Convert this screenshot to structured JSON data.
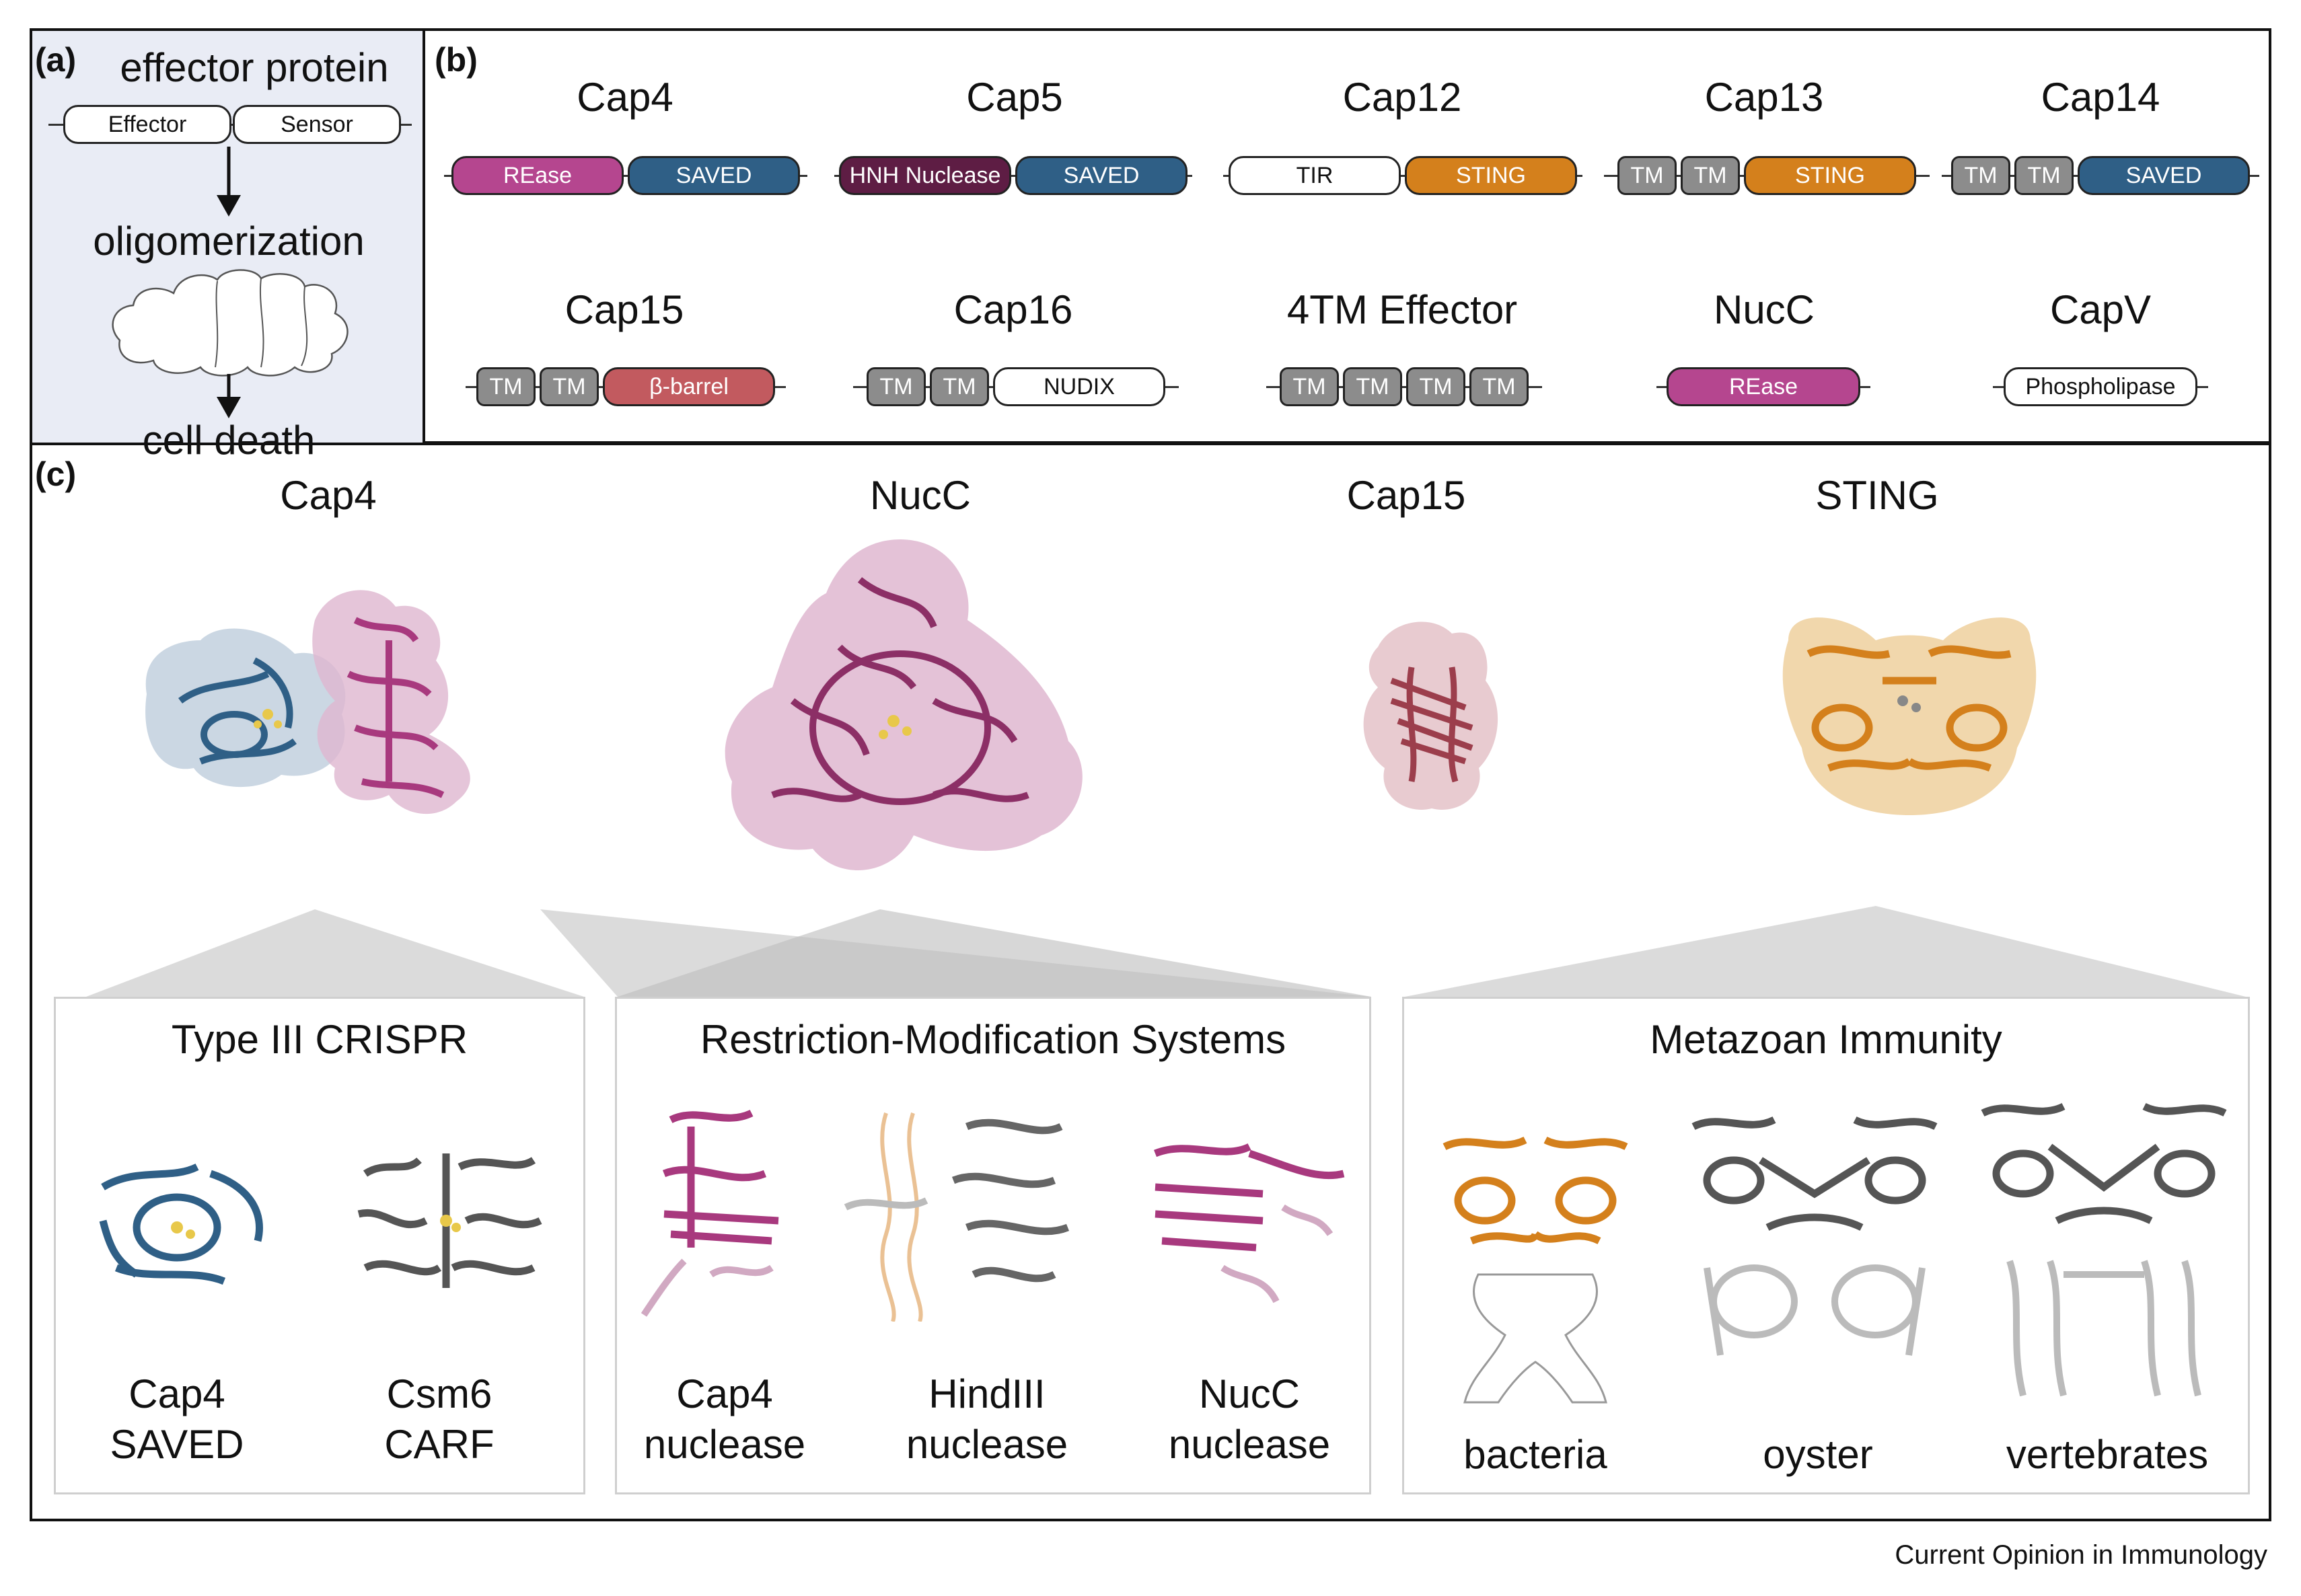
{
  "colors": {
    "rease": "#b5468f",
    "saved": "#2f5f86",
    "hnh": "#5e1d44",
    "sting": "#d4801c",
    "tm": "#8c8c8c",
    "barrel": "#c25a5f",
    "white": "#ffffff",
    "panel_a_bg": "#e9ecf5"
  },
  "panel_a": {
    "label": "(a)",
    "title": "effector protein",
    "domain_effector": "Effector",
    "domain_sensor": "Sensor",
    "step2": "oligomerization",
    "step3": "cell death"
  },
  "panel_b": {
    "label": "(b)",
    "proteins": [
      {
        "name": "Cap4",
        "domains": [
          {
            "label": "REase",
            "kind": "rease"
          },
          {
            "label": "SAVED",
            "kind": "saved"
          }
        ]
      },
      {
        "name": "Cap5",
        "domains": [
          {
            "label": "HNH Nuclease",
            "kind": "hnh"
          },
          {
            "label": "SAVED",
            "kind": "saved"
          }
        ]
      },
      {
        "name": "Cap12",
        "domains": [
          {
            "label": "TIR",
            "kind": "white"
          },
          {
            "label": "STING",
            "kind": "sting"
          }
        ]
      },
      {
        "name": "Cap13",
        "domains": [
          {
            "label": "TM",
            "kind": "tm"
          },
          {
            "label": "TM",
            "kind": "tm"
          },
          {
            "label": "STING",
            "kind": "sting"
          }
        ]
      },
      {
        "name": "Cap14",
        "domains": [
          {
            "label": "TM",
            "kind": "tm"
          },
          {
            "label": "TM",
            "kind": "tm"
          },
          {
            "label": "SAVED",
            "kind": "saved"
          }
        ]
      },
      {
        "name": "Cap15",
        "domains": [
          {
            "label": "TM",
            "kind": "tm"
          },
          {
            "label": "TM",
            "kind": "tm"
          },
          {
            "label": "β-barrel",
            "kind": "barrel"
          }
        ]
      },
      {
        "name": "Cap16",
        "domains": [
          {
            "label": "TM",
            "kind": "tm"
          },
          {
            "label": "TM",
            "kind": "tm"
          },
          {
            "label": "NUDIX",
            "kind": "white"
          }
        ]
      },
      {
        "name": "4TM Effector",
        "domains": [
          {
            "label": "TM",
            "kind": "tm"
          },
          {
            "label": "TM",
            "kind": "tm"
          },
          {
            "label": "TM",
            "kind": "tm"
          },
          {
            "label": "TM",
            "kind": "tm"
          }
        ]
      },
      {
        "name": "NucC",
        "domains": [
          {
            "label": "REase",
            "kind": "rease"
          }
        ]
      },
      {
        "name": "CapV",
        "domains": [
          {
            "label": "Phospholipase",
            "kind": "white"
          }
        ]
      }
    ]
  },
  "panel_c": {
    "label": "(c)",
    "structures": [
      "Cap4",
      "NucC",
      "Cap15",
      "STING"
    ],
    "boxes": [
      {
        "title": "Type III CRISPR",
        "labels": [
          "Cap4\nSAVED",
          "Csm6\nCARF"
        ]
      },
      {
        "title": "Restriction-Modification Systems",
        "labels": [
          "Cap4\nnuclease",
          "HindIII\nnuclease",
          "NucC\nnuclease"
        ]
      },
      {
        "title": "Metazoan Immunity",
        "labels": [
          "bacteria",
          "oyster",
          "vertebrates"
        ]
      }
    ]
  },
  "footer": "Current Opinion in Immunology"
}
